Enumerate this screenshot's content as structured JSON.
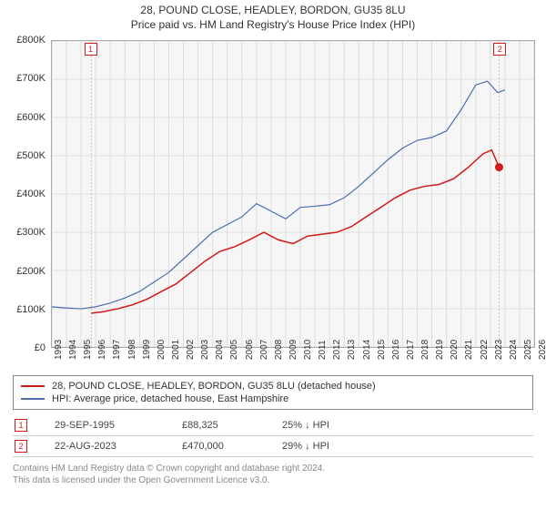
{
  "title": {
    "line1": "28, POUND CLOSE, HEADLEY, BORDON, GU35 8LU",
    "line2": "Price paid vs. HM Land Registry's House Price Index (HPI)"
  },
  "chart": {
    "type": "line",
    "background_color": "#f6f6f6",
    "plot_border": "#aaaaaa",
    "grid_color": "#dddddd",
    "x": {
      "min": 1993,
      "max": 2026,
      "tick_step": 1,
      "labels": [
        "1993",
        "1994",
        "1995",
        "1996",
        "1997",
        "1998",
        "1999",
        "2000",
        "2001",
        "2002",
        "2003",
        "2004",
        "2005",
        "2006",
        "2007",
        "2008",
        "2009",
        "2010",
        "2011",
        "2012",
        "2013",
        "2014",
        "2015",
        "2016",
        "2017",
        "2018",
        "2019",
        "2020",
        "2021",
        "2022",
        "2023",
        "2024",
        "2025",
        "2026"
      ],
      "rotation": -90,
      "fontsize": 10
    },
    "y": {
      "min": 0,
      "max": 800000,
      "tick_step": 100000,
      "labels": [
        "£0",
        "£100K",
        "£200K",
        "£300K",
        "£400K",
        "£500K",
        "£600K",
        "£700K",
        "£800K"
      ],
      "fontsize": 11
    },
    "series": [
      {
        "key": "subject",
        "color": "#d11919",
        "width": 1.5,
        "data": [
          [
            1995.7,
            88325
          ],
          [
            1996.5,
            92000
          ],
          [
            1997.5,
            100000
          ],
          [
            1998.5,
            110000
          ],
          [
            1999.5,
            125000
          ],
          [
            2000.5,
            145000
          ],
          [
            2001.5,
            165000
          ],
          [
            2002.5,
            195000
          ],
          [
            2003.5,
            225000
          ],
          [
            2004.5,
            250000
          ],
          [
            2005.5,
            262000
          ],
          [
            2006.5,
            280000
          ],
          [
            2007.5,
            300000
          ],
          [
            2008.5,
            280000
          ],
          [
            2009.5,
            270000
          ],
          [
            2010.5,
            290000
          ],
          [
            2011.5,
            295000
          ],
          [
            2012.5,
            300000
          ],
          [
            2013.5,
            315000
          ],
          [
            2014.5,
            340000
          ],
          [
            2015.5,
            365000
          ],
          [
            2016.5,
            390000
          ],
          [
            2017.5,
            410000
          ],
          [
            2018.5,
            420000
          ],
          [
            2019.5,
            425000
          ],
          [
            2020.5,
            440000
          ],
          [
            2021.5,
            470000
          ],
          [
            2022.5,
            505000
          ],
          [
            2023.1,
            515000
          ],
          [
            2023.6,
            470000
          ]
        ],
        "end_dot": {
          "x": 2023.6,
          "y": 470000,
          "r": 4.5
        }
      },
      {
        "key": "hpi",
        "color": "#4b6db0",
        "width": 1.2,
        "data": [
          [
            1993.0,
            105000
          ],
          [
            1994.0,
            102000
          ],
          [
            1995.0,
            100000
          ],
          [
            1996.0,
            105000
          ],
          [
            1997.0,
            115000
          ],
          [
            1998.0,
            128000
          ],
          [
            1999.0,
            145000
          ],
          [
            2000.0,
            170000
          ],
          [
            2001.0,
            195000
          ],
          [
            2002.0,
            230000
          ],
          [
            2003.0,
            265000
          ],
          [
            2004.0,
            300000
          ],
          [
            2005.0,
            320000
          ],
          [
            2006.0,
            340000
          ],
          [
            2007.0,
            375000
          ],
          [
            2008.0,
            355000
          ],
          [
            2009.0,
            335000
          ],
          [
            2010.0,
            365000
          ],
          [
            2011.0,
            368000
          ],
          [
            2012.0,
            372000
          ],
          [
            2013.0,
            390000
          ],
          [
            2014.0,
            420000
          ],
          [
            2015.0,
            455000
          ],
          [
            2016.0,
            490000
          ],
          [
            2017.0,
            520000
          ],
          [
            2018.0,
            540000
          ],
          [
            2019.0,
            548000
          ],
          [
            2020.0,
            565000
          ],
          [
            2021.0,
            620000
          ],
          [
            2022.0,
            685000
          ],
          [
            2022.8,
            695000
          ],
          [
            2023.5,
            665000
          ],
          [
            2024.0,
            672000
          ]
        ]
      }
    ],
    "event_markers": [
      {
        "n": "1",
        "x": 1995.7,
        "grid_color": "#e7b0b0",
        "box_border": "#d11919"
      },
      {
        "n": "2",
        "x": 2023.6,
        "grid_color": "#e7b0b0",
        "box_border": "#d11919"
      }
    ]
  },
  "legend": {
    "items": [
      {
        "color": "#d11919",
        "label": "28, POUND CLOSE, HEADLEY, BORDON, GU35 8LU (detached house)"
      },
      {
        "color": "#4b6db0",
        "label": "HPI: Average price, detached house, East Hampshire"
      }
    ]
  },
  "events": [
    {
      "n": "1",
      "date": "29-SEP-1995",
      "price": "£88,325",
      "pct": "25% ↓ HPI",
      "border": "#d11919"
    },
    {
      "n": "2",
      "date": "22-AUG-2023",
      "price": "£470,000",
      "pct": "29% ↓ HPI",
      "border": "#d11919"
    }
  ],
  "license": {
    "line1": "Contains HM Land Registry data © Crown copyright and database right 2024.",
    "line2": "This data is licensed under the Open Government Licence v3.0."
  }
}
